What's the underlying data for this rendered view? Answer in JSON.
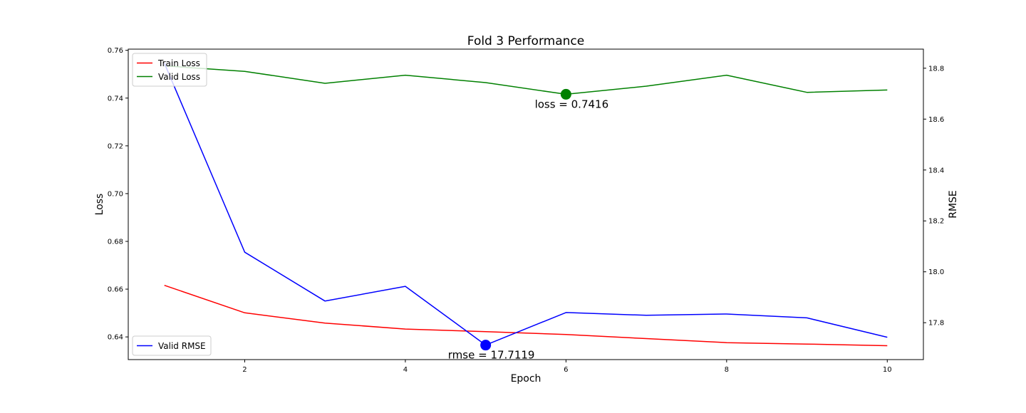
{
  "chart_data": {
    "type": "line",
    "title": "Fold 3 Performance",
    "xlabel": "Epoch",
    "ylabel_left": "Loss",
    "ylabel_right": "RMSE",
    "x": [
      1,
      2,
      3,
      4,
      5,
      6,
      7,
      8,
      9,
      10
    ],
    "xlim": [
      0.55,
      10.45
    ],
    "xticks": [
      2,
      4,
      6,
      8,
      10
    ],
    "ylim_left": [
      0.6305,
      0.7605
    ],
    "yticks_left": [
      "0.64",
      "0.66",
      "0.68",
      "0.70",
      "0.72",
      "0.74",
      "0.76"
    ],
    "ylim_right": [
      17.655,
      18.875
    ],
    "yticks_right": [
      "17.8",
      "18.0",
      "18.2",
      "18.4",
      "18.6",
      "18.8"
    ],
    "grid": false,
    "series": [
      {
        "name": "Train Loss",
        "axis": "left",
        "color": "#ff0000",
        "values": [
          0.6616,
          0.6501,
          0.6458,
          0.6433,
          0.6422,
          0.641,
          0.6393,
          0.6376,
          0.637,
          0.6363
        ]
      },
      {
        "name": "Valid Loss",
        "axis": "left",
        "color": "#008000",
        "values": [
          0.7535,
          0.7512,
          0.7462,
          0.7496,
          0.7465,
          0.7416,
          0.745,
          0.7496,
          0.7424,
          0.7434
        ]
      },
      {
        "name": "Valid RMSE",
        "axis": "right",
        "color": "#0000ff",
        "values": [
          18.82,
          18.077,
          17.885,
          17.943,
          17.712,
          17.84,
          17.829,
          17.834,
          17.819,
          17.743
        ]
      }
    ],
    "legends": [
      {
        "position": "upper-left",
        "entries": [
          "Train Loss",
          "Valid Loss"
        ]
      },
      {
        "position": "lower-left",
        "entries": [
          "Valid RMSE"
        ]
      }
    ],
    "annotations": [
      {
        "series": "Valid Loss",
        "x": 6,
        "y": 0.7416,
        "text": "loss = 0.7416",
        "color": "#008000"
      },
      {
        "series": "Valid RMSE",
        "x": 5,
        "y": 17.7119,
        "text": "rmse = 17.7119",
        "color": "#0000ff"
      }
    ]
  }
}
